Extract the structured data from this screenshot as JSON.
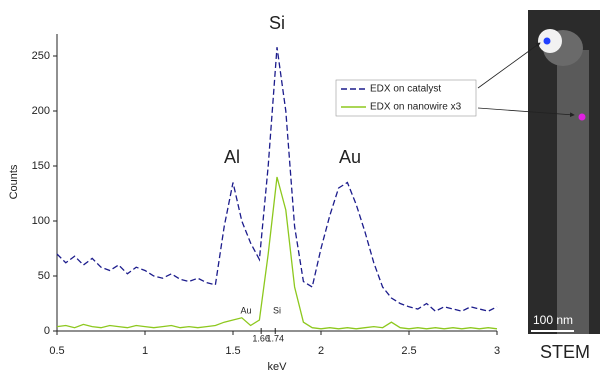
{
  "chart_data": {
    "type": "line",
    "x_label": "keV",
    "y_label": "Counts",
    "x": [
      0.5,
      0.55,
      0.6,
      0.65,
      0.7,
      0.75,
      0.8,
      0.85,
      0.9,
      0.95,
      1.0,
      1.05,
      1.1,
      1.15,
      1.2,
      1.25,
      1.3,
      1.35,
      1.4,
      1.45,
      1.5,
      1.55,
      1.6,
      1.65,
      1.7,
      1.75,
      1.8,
      1.85,
      1.9,
      1.95,
      2.0,
      2.05,
      2.1,
      2.15,
      2.2,
      2.25,
      2.3,
      2.35,
      2.4,
      2.45,
      2.5,
      2.55,
      2.6,
      2.65,
      2.7,
      2.75,
      2.8,
      2.85,
      2.9,
      2.95,
      3.0
    ],
    "series": [
      {
        "name": "EDX on catalyst",
        "color": "#1c1c8c",
        "dashed": true,
        "values": [
          70,
          62,
          68,
          60,
          66,
          58,
          55,
          60,
          52,
          58,
          55,
          50,
          48,
          52,
          47,
          45,
          48,
          44,
          42,
          95,
          135,
          100,
          80,
          65,
          150,
          258,
          200,
          95,
          45,
          40,
          75,
          105,
          130,
          135,
          115,
          90,
          62,
          40,
          30,
          25,
          22,
          20,
          25,
          18,
          22,
          20,
          18,
          22,
          20,
          18,
          22
        ]
      },
      {
        "name": "EDX on nanowire x3",
        "color": "#8dc81e",
        "dashed": false,
        "values": [
          4,
          5,
          3,
          6,
          4,
          3,
          5,
          4,
          3,
          5,
          4,
          3,
          4,
          5,
          3,
          4,
          3,
          4,
          5,
          8,
          10,
          12,
          5,
          10,
          70,
          140,
          110,
          40,
          8,
          3,
          2,
          3,
          2,
          3,
          2,
          3,
          4,
          3,
          8,
          3,
          2,
          3,
          2,
          3,
          2,
          3,
          2,
          3,
          2,
          3,
          2
        ]
      }
    ],
    "xlim": [
      0.5,
      3
    ],
    "xticks": [
      0.5,
      1,
      1.5,
      2,
      2.5,
      3
    ],
    "ylim": [
      0,
      270
    ],
    "yticks": [
      0,
      50,
      100,
      150,
      200,
      250
    ],
    "xmarkers": [
      1.66,
      1.74
    ],
    "annotations": [
      "Si",
      "Al",
      "Au",
      "Au",
      "Si"
    ]
  },
  "stem_image": {
    "scale_bar": "100 nm",
    "caption": "STEM"
  }
}
